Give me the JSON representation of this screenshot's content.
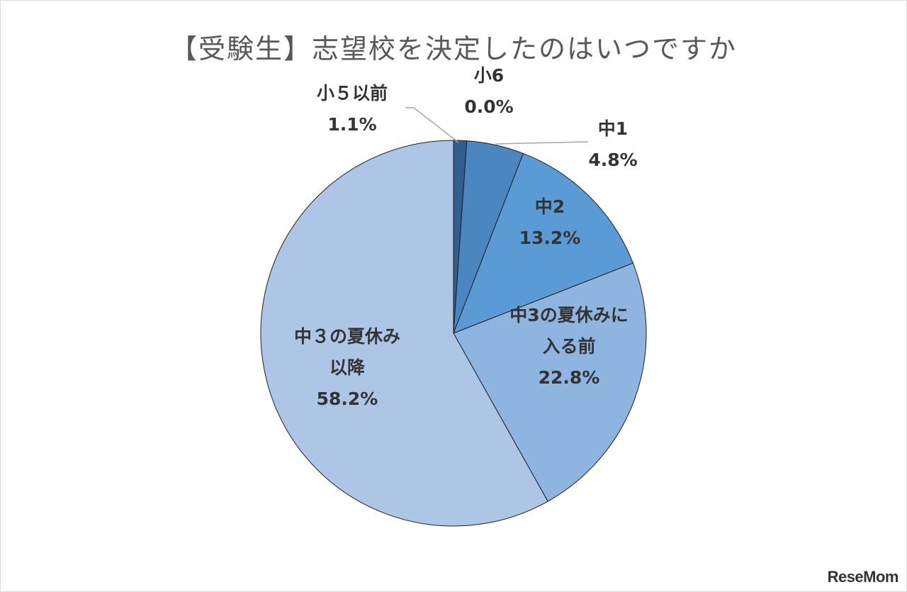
{
  "chart_data": {
    "type": "pie",
    "title": "【受験生】志望校を決定したのはいつですか",
    "slices": [
      {
        "label_lines": [
          "小５以前"
        ],
        "value": 1.1,
        "value_label": "1.1%",
        "color": "#2e5f8e"
      },
      {
        "label_lines": [
          "小6"
        ],
        "value": 0.0,
        "value_label": "0.0%",
        "color": "#3a6fa3"
      },
      {
        "label_lines": [
          "中1"
        ],
        "value": 4.8,
        "value_label": "4.8%",
        "color": "#4a86c0"
      },
      {
        "label_lines": [
          "中2"
        ],
        "value": 13.2,
        "value_label": "13.2%",
        "color": "#5b9bd5"
      },
      {
        "label_lines": [
          "中3の夏休みに",
          "入る前"
        ],
        "value": 22.8,
        "value_label": "22.8%",
        "color": "#8eb4e0"
      },
      {
        "label_lines": [
          "中３の夏休み",
          "以降"
        ],
        "value": 58.2,
        "value_label": "58.2%",
        "color": "#aec6e6"
      }
    ],
    "start_angle_deg": 0,
    "direction": "clockwise"
  },
  "watermark": "ReseMom"
}
